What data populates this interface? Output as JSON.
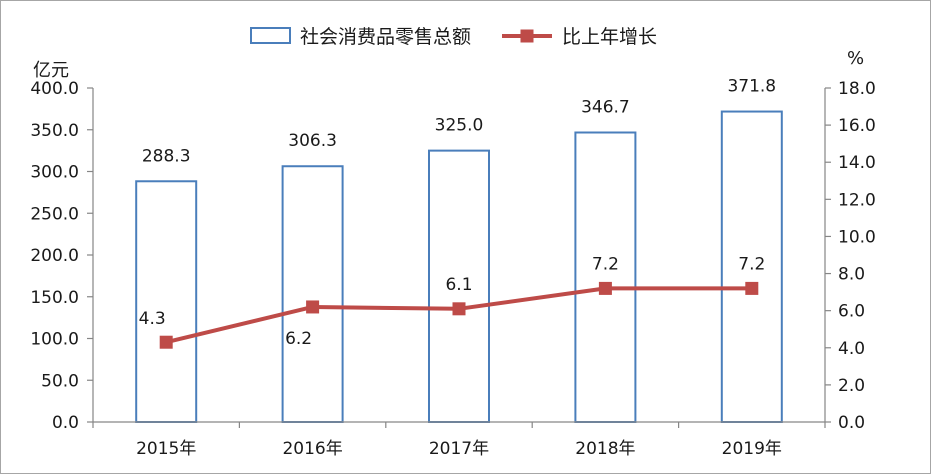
{
  "chart_data": {
    "type": "bar",
    "categories": [
      "2015年",
      "2016年",
      "2017年",
      "2018年",
      "2019年"
    ],
    "series": [
      {
        "name": "社会消费品零售总额",
        "type": "bar",
        "axis": "left",
        "values": [
          288.3,
          306.3,
          325.0,
          346.7,
          371.8
        ],
        "data_labels": [
          "288.3",
          "306.3",
          "325.0",
          "346.7",
          "371.8"
        ],
        "color": "#4A7EBB",
        "fill": "#FFFFFF"
      },
      {
        "name": "比上年增长",
        "type": "line",
        "axis": "right",
        "marker": "square",
        "values": [
          4.3,
          6.2,
          6.1,
          7.2,
          7.2
        ],
        "data_labels": [
          "4.3",
          "6.2",
          "6.1",
          "7.2",
          "7.2"
        ],
        "color": "#BE4B48"
      }
    ],
    "y_left": {
      "label": "亿元",
      "ylim": [
        0,
        400
      ],
      "tick_labels": [
        "0.0",
        "50.0",
        "100.0",
        "150.0",
        "200.0",
        "250.0",
        "300.0",
        "350.0",
        "400.0"
      ]
    },
    "y_right": {
      "label": "%",
      "ylim": [
        0,
        18
      ],
      "tick_labels": [
        "0.0",
        "2.0",
        "4.0",
        "6.0",
        "8.0",
        "10.0",
        "12.0",
        "14.0",
        "16.0",
        "18.0"
      ]
    },
    "grid": false,
    "legend_position": "top"
  },
  "colors": {
    "axis": "#868686",
    "frame": "#A6A6A6"
  }
}
